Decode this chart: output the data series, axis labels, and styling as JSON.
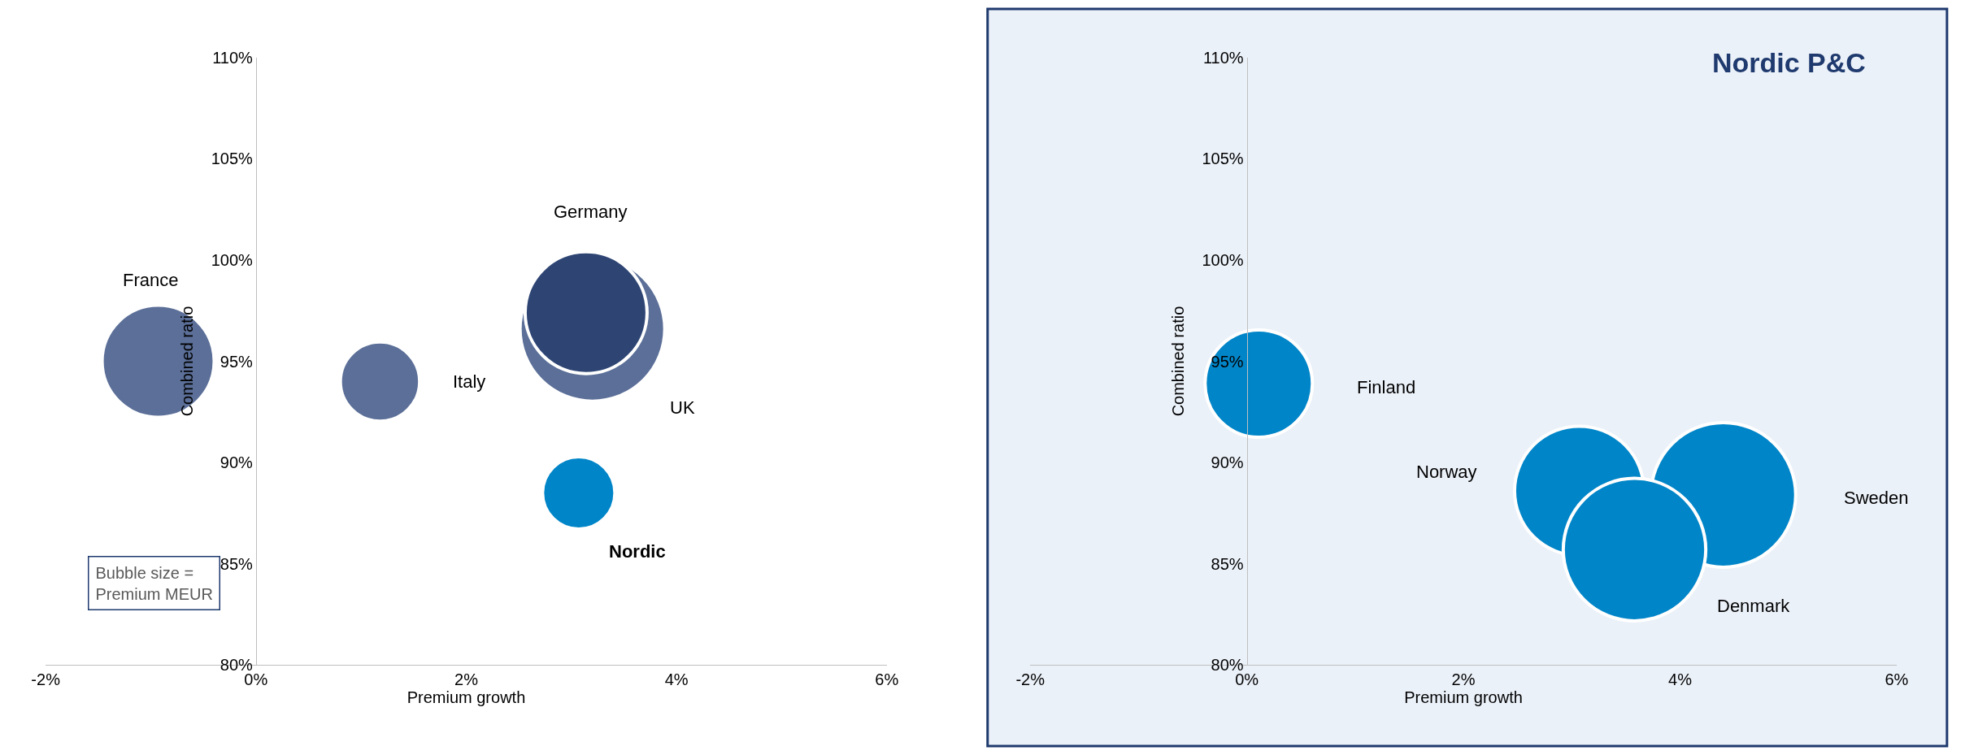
{
  "chart_data": [
    {
      "type": "bubble",
      "xlabel": "Premium growth",
      "ylabel": "Combined ratio",
      "xlim": [
        -2,
        6
      ],
      "ylim": [
        80,
        110
      ],
      "xticks": [
        {
          "value": -2,
          "label": "-2%"
        },
        {
          "value": 0,
          "label": "0%"
        },
        {
          "value": 2,
          "label": "2%"
        },
        {
          "value": 4,
          "label": "4%"
        },
        {
          "value": 6,
          "label": "6%"
        }
      ],
      "yticks": [
        {
          "value": 80,
          "label": "80%"
        },
        {
          "value": 85,
          "label": "85%"
        },
        {
          "value": 90,
          "label": "90%"
        },
        {
          "value": 95,
          "label": "95%"
        },
        {
          "value": 100,
          "label": "100%"
        },
        {
          "value": 105,
          "label": "105%"
        },
        {
          "value": 110,
          "label": "110%"
        }
      ],
      "series": [
        {
          "name": "France",
          "color": "#5b6f98",
          "x": [
            -0.93
          ],
          "values": [
            95.0
          ],
          "sizes": [
            0.6
          ]
        },
        {
          "name": "Italy",
          "color": "#5b6f98",
          "x": [
            1.18
          ],
          "values": [
            94.0
          ],
          "sizes": [
            0.3
          ]
        },
        {
          "name": "UK",
          "color": "#5b6f98",
          "x": [
            3.2
          ],
          "values": [
            96.6
          ],
          "sizes": [
            1
          ]
        },
        {
          "name": "Germany",
          "color": "#2e4574",
          "x": [
            3.14
          ],
          "values": [
            97.4
          ],
          "sizes": [
            0.71
          ]
        },
        {
          "name": "Nordic",
          "color": "#0085c8",
          "x": [
            3.07
          ],
          "values": [
            88.5
          ],
          "sizes": [
            0.25
          ]
        }
      ],
      "annotations": [
        "Bubble size =\nPremium MEUR"
      ],
      "legend": false,
      "grid": false
    },
    {
      "type": "bubble",
      "title": "Nordic P&C",
      "xlabel": "Premium growth",
      "ylabel": "Combined ratio",
      "xlim": [
        -2,
        6
      ],
      "ylim": [
        80,
        110
      ],
      "xticks": [
        {
          "value": -2,
          "label": "-2%"
        },
        {
          "value": 0,
          "label": "0%"
        },
        {
          "value": 2,
          "label": "2%"
        },
        {
          "value": 4,
          "label": "4%"
        },
        {
          "value": 6,
          "label": "6%"
        }
      ],
      "yticks": [
        {
          "value": 80,
          "label": "80%"
        },
        {
          "value": 85,
          "label": "85%"
        },
        {
          "value": 90,
          "label": "90%"
        },
        {
          "value": 95,
          "label": "95%"
        },
        {
          "value": 100,
          "label": "100%"
        },
        {
          "value": 105,
          "label": "105%"
        },
        {
          "value": 110,
          "label": "110%"
        }
      ],
      "series": [
        {
          "name": "Finland",
          "color": "#0085c8",
          "x": [
            0.11
          ],
          "values": [
            93.9
          ],
          "sizes": [
            0.55
          ]
        },
        {
          "name": "Norway",
          "color": "#0085c8",
          "x": [
            3.07
          ],
          "values": [
            88.6
          ],
          "sizes": [
            0.8
          ]
        },
        {
          "name": "Sweden",
          "color": "#0085c8",
          "x": [
            4.4
          ],
          "values": [
            88.4
          ],
          "sizes": [
            1
          ]
        },
        {
          "name": "Denmark",
          "color": "#0085c8",
          "x": [
            3.58
          ],
          "values": [
            85.7
          ],
          "sizes": [
            0.97
          ]
        }
      ],
      "legend": false,
      "grid": false
    }
  ]
}
